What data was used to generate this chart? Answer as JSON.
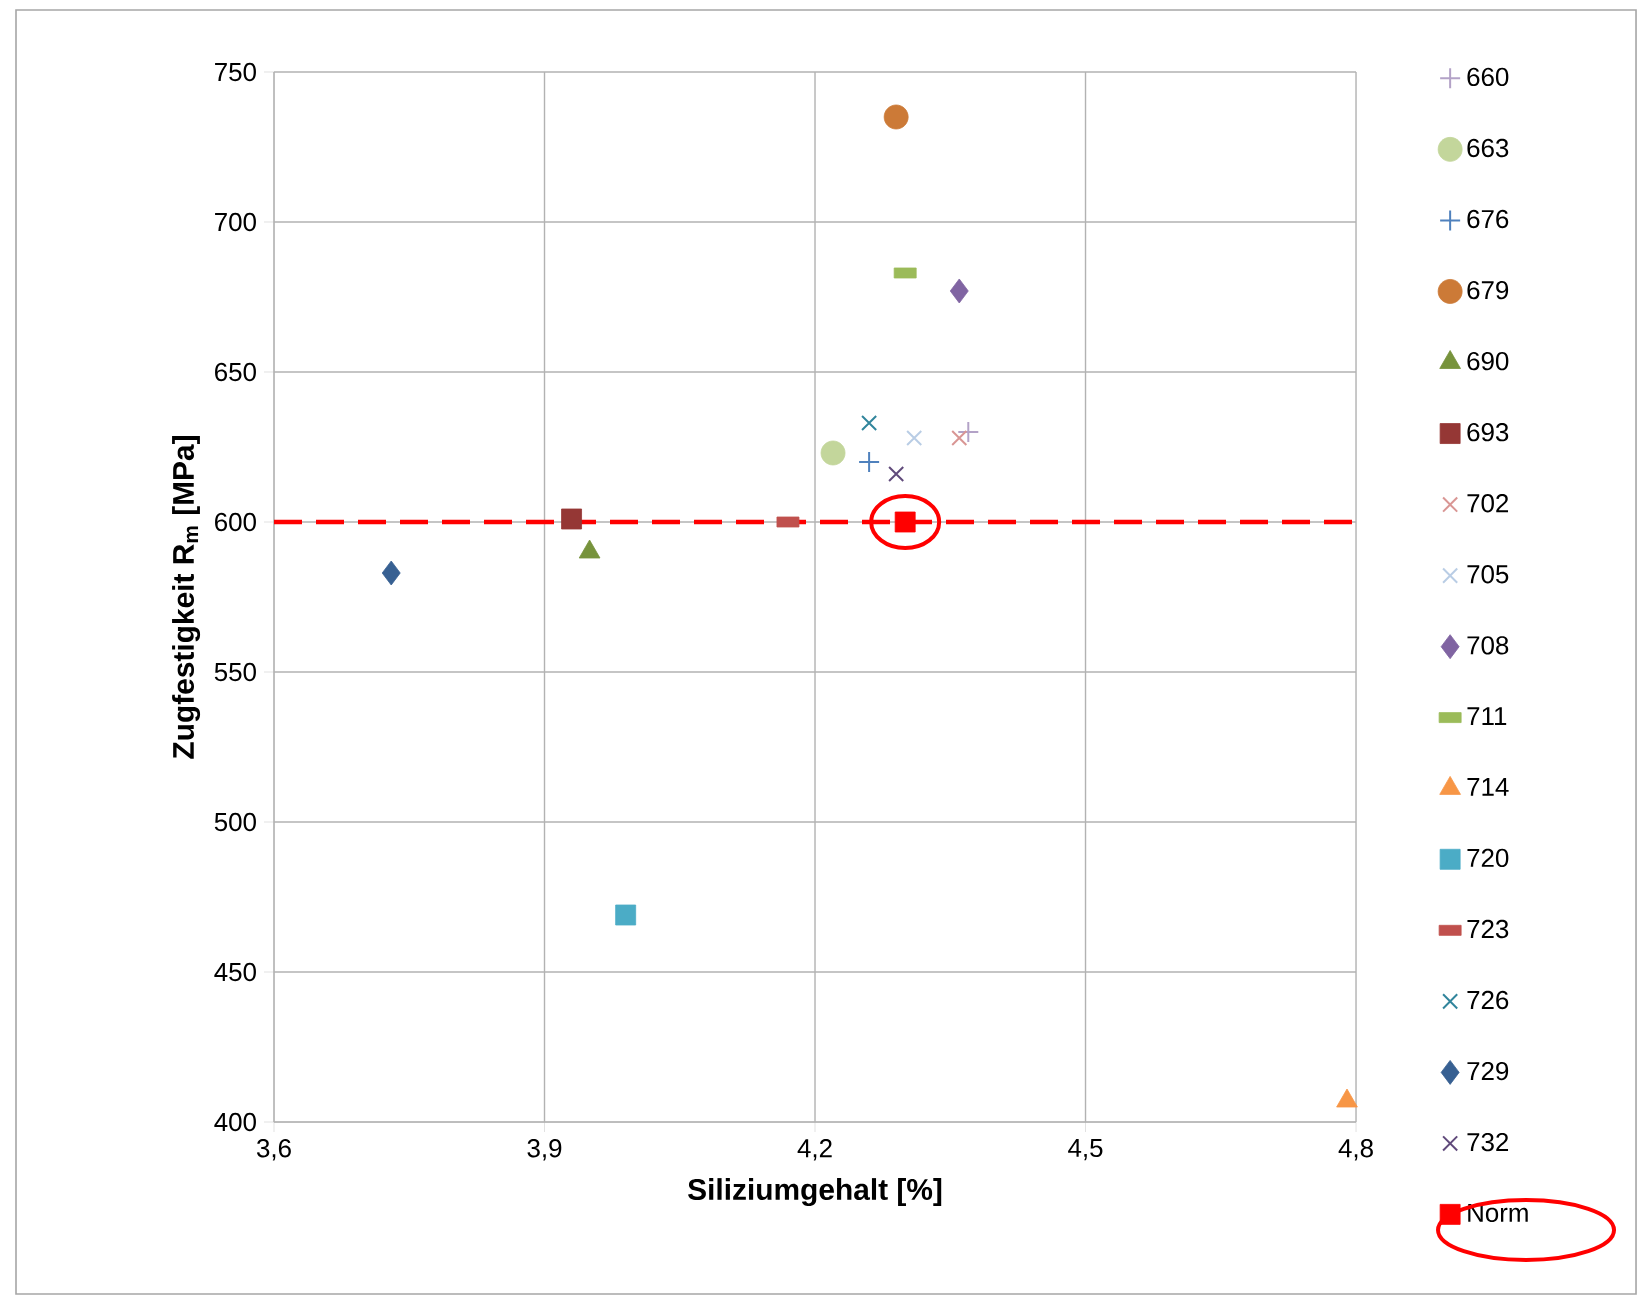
{
  "chart_data": {
    "type": "scatter",
    "xlabel": "Siliziumgehalt [%]",
    "ylabel": "Zugfestigkeit R$_{m}$ [MPa]",
    "xlim": [
      3.6,
      4.8
    ],
    "ylim": [
      400,
      750
    ],
    "xticks": [
      {
        "value": 3.6,
        "label": "3,6"
      },
      {
        "value": 3.9,
        "label": "3,9"
      },
      {
        "value": 4.2,
        "label": "4,2"
      },
      {
        "value": 4.5,
        "label": "4,5"
      },
      {
        "value": 4.8,
        "label": "4,8"
      }
    ],
    "yticks": [
      400,
      450,
      500,
      550,
      600,
      650,
      700,
      750
    ],
    "grid": true,
    "legend": "right",
    "ref_lines": [
      {
        "axis": "y",
        "value": 600,
        "color": "#ff0000",
        "line_style": "dashed"
      }
    ],
    "series": [
      {
        "name": "660",
        "color": "#b3a2c7",
        "marker": "plus",
        "x": [
          4.37
        ],
        "values": [
          630
        ]
      },
      {
        "name": "663",
        "color": "#c3d69b",
        "marker": "circle",
        "x": [
          4.22
        ],
        "values": [
          623
        ]
      },
      {
        "name": "676",
        "color": "#4f81bd",
        "marker": "plus",
        "x": [
          4.26
        ],
        "values": [
          620
        ]
      },
      {
        "name": "679",
        "color": "#cc7a37",
        "marker": "circle",
        "x": [
          4.29
        ],
        "values": [
          735
        ]
      },
      {
        "name": "690",
        "color": "#77933c",
        "marker": "triangle",
        "x": [
          3.95
        ],
        "values": [
          590
        ]
      },
      {
        "name": "693",
        "color": "#953735",
        "marker": "square",
        "x": [
          3.93
        ],
        "values": [
          601
        ]
      },
      {
        "name": "702",
        "color": "#d99694",
        "marker": "cross",
        "x": [
          4.36
        ],
        "values": [
          628
        ]
      },
      {
        "name": "705",
        "color": "#b9cde5",
        "marker": "cross",
        "x": [
          4.31
        ],
        "values": [
          628
        ]
      },
      {
        "name": "708",
        "color": "#8064a2",
        "marker": "diamond",
        "x": [
          4.36
        ],
        "values": [
          677
        ]
      },
      {
        "name": "711",
        "color": "#9bbb59",
        "x": [
          4.3
        ],
        "values": [
          683
        ]
      },
      {
        "name": "714",
        "color": "#f79646",
        "marker": "triangle",
        "x": [
          4.79
        ],
        "values": [
          407
        ]
      },
      {
        "name": "720",
        "color": "#4bacc6",
        "marker": "square",
        "x": [
          3.99
        ],
        "values": [
          469
        ]
      },
      {
        "name": "723",
        "color": "#c0504d",
        "x": [
          4.17
        ],
        "values": [
          600
        ]
      },
      {
        "name": "726",
        "color": "#31859c",
        "marker": "cross",
        "x": [
          4.26
        ],
        "values": [
          633
        ]
      },
      {
        "name": "729",
        "color": "#376092",
        "marker": "diamond",
        "x": [
          3.73
        ],
        "values": [
          583
        ]
      },
      {
        "name": "732",
        "color": "#604a7b",
        "marker": "cross",
        "x": [
          4.29
        ],
        "values": [
          616
        ]
      },
      {
        "name": "Norm",
        "color": "#ff0000",
        "marker": "square",
        "x": [
          4.3
        ],
        "values": [
          600
        ]
      }
    ]
  }
}
